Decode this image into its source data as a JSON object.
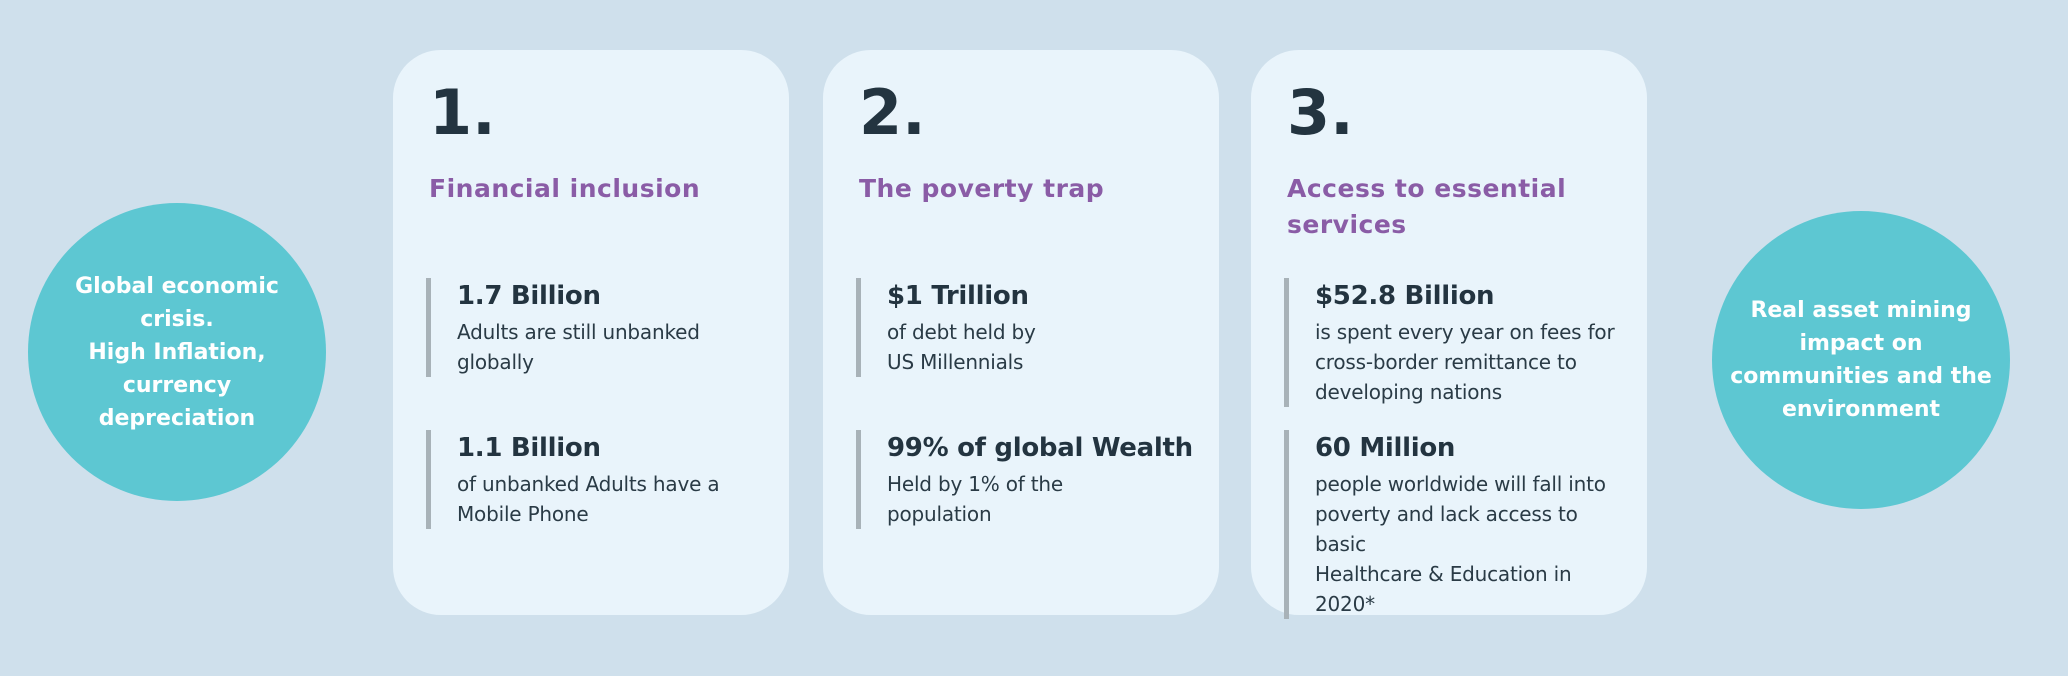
{
  "colors": {
    "page_background": "#cfe0ec",
    "card_background": "#e9f4fb",
    "circle_background": "#5dc7d2",
    "title_purple": "#8a5ca6",
    "text_dark": "#233440",
    "stat_line_gray": "#a8b2b8",
    "circle_text_white": "#ffffff"
  },
  "left_circle": {
    "text": "Global economic\ncrisis.\nHigh Inflation,\ncurrency\ndepreciation"
  },
  "right_circle": {
    "text": "Real asset  mining\nimpact on\ncommunities and the\nenvironment"
  },
  "cards": [
    {
      "number": "1.",
      "title": "Financial inclusion",
      "stats": [
        {
          "value": "1.7 Billion",
          "description": "Adults are still unbanked\nglobally"
        },
        {
          "value": "1.1 Billion",
          "description": "of unbanked Adults have a\nMobile Phone"
        }
      ]
    },
    {
      "number": "2.",
      "title": "The poverty trap",
      "stats": [
        {
          "value": "$1 Trillion",
          "description": "of debt held by\nUS Millennials"
        },
        {
          "value": "99% of global Wealth",
          "description": "Held by 1% of the\npopulation"
        }
      ]
    },
    {
      "number": "3.",
      "title": "Access to essential\nservices",
      "stats": [
        {
          "value": "$52.8 Billion",
          "description": "is spent every year on fees for\ncross-border remittance to\ndeveloping nations"
        },
        {
          "value": "60 Million",
          "description": "people worldwide will fall into\npoverty and lack access to basic\nHealthcare & Education in 2020*"
        }
      ]
    }
  ]
}
